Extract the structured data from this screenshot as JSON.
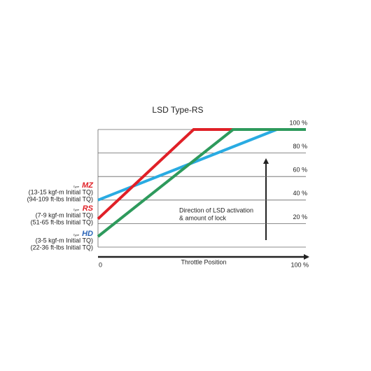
{
  "chart_data": {
    "type": "line",
    "title": "LSD Type-RS",
    "x_label": "Throttle Position",
    "annotation": [
      "Direction of LSD activation",
      "& amount of lock"
    ],
    "xlim": [
      0,
      100
    ],
    "xticks": [
      0,
      {
        "value": 100,
        "label": "100 %"
      }
    ],
    "ylim": [
      0,
      100
    ],
    "yticks": [
      {
        "value": 20,
        "label": "20 %"
      },
      {
        "value": 40,
        "label": "40 %"
      },
      {
        "value": 60,
        "label": "60 %"
      },
      {
        "value": 80,
        "label": "80 %"
      },
      {
        "value": 100,
        "label": "100 %"
      }
    ],
    "grid": true,
    "series": [
      {
        "name": "MZ",
        "prefix": "Type",
        "logo_color": "#e02027",
        "color": "#29abe2",
        "x": [
          0,
          86,
          100
        ],
        "values": [
          40,
          100,
          100
        ],
        "notes": [
          "(13-15 kgf-m Initial TQ)",
          "(94-109 ft-lbs Initial TQ)"
        ]
      },
      {
        "name": "RS",
        "prefix": "Type",
        "logo_color": "#e02027",
        "color": "#e02027",
        "x": [
          0,
          46,
          100
        ],
        "values": [
          24,
          100,
          100
        ],
        "notes": [
          "(7-9 kgf-m Initial TQ)",
          "(51-65 ft-lbs Initial TQ)"
        ]
      },
      {
        "name": "HD",
        "prefix": "Type",
        "logo_color": "#2a64b8",
        "color": "#2e9a5c",
        "x": [
          0,
          65,
          100
        ],
        "values": [
          9,
          100,
          100
        ],
        "notes": [
          "(3-5 kgf-m Initial TQ)",
          "(22-36 ft-lbs Initial TQ)"
        ]
      }
    ]
  }
}
